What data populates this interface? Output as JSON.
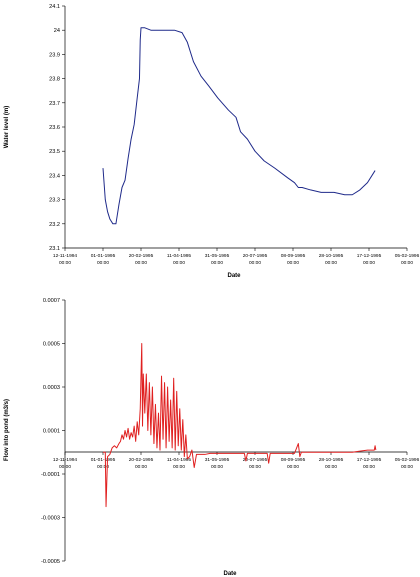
{
  "chart_data": [
    {
      "type": "line",
      "xlabel": "Date",
      "ylabel": "Water level (m)",
      "ylim": [
        23.1,
        24.1
      ],
      "y_ticks": [
        "24.1",
        "24",
        "23.9",
        "23.8",
        "23.7",
        "23.6",
        "23.5",
        "23.4",
        "23.3",
        "23.2",
        "23.1"
      ],
      "x_ticks": [
        [
          "12-11-1994",
          "00:00"
        ],
        [
          "01-01-1995",
          "00:00"
        ],
        [
          "20-02-1995",
          "00:00"
        ],
        [
          "11-04-1995",
          "00:00"
        ],
        [
          "31-05-1995",
          "00:00"
        ],
        [
          "20-07-1995",
          "00:00"
        ],
        [
          "08-09-1995",
          "00:00"
        ],
        [
          "28-10-1995",
          "00:00"
        ],
        [
          "17-12-1995",
          "00:00"
        ],
        [
          "05-02-1996",
          "00:00"
        ]
      ],
      "xlim": [
        "1994-11-12",
        "1996-02-05"
      ],
      "line_color": "#1f2a8a",
      "grid": false,
      "series": [
        {
          "x": [
            "1995-01-01",
            "1995-01-04",
            "1995-01-07",
            "1995-01-10",
            "1995-01-14",
            "1995-01-18",
            "1995-01-22",
            "1995-01-26",
            "1995-01-30",
            "1995-02-03",
            "1995-02-07",
            "1995-02-11",
            "1995-02-15",
            "1995-02-18",
            "1995-02-19",
            "1995-02-20",
            "1995-02-25",
            "1995-03-05",
            "1995-03-15",
            "1995-03-25",
            "1995-04-05",
            "1995-04-15",
            "1995-04-22",
            "1995-04-30",
            "1995-05-10",
            "1995-05-20",
            "1995-06-01",
            "1995-06-15",
            "1995-06-25",
            "1995-07-01",
            "1995-07-10",
            "1995-07-20",
            "1995-08-01",
            "1995-08-15",
            "1995-09-01",
            "1995-09-10",
            "1995-09-15",
            "1995-09-20",
            "1995-10-01",
            "1995-10-15",
            "1995-11-01",
            "1995-11-15",
            "1995-11-25",
            "1995-12-05",
            "1995-12-15",
            "1995-12-25"
          ],
          "y": [
            23.43,
            23.3,
            23.25,
            23.22,
            23.2,
            23.2,
            23.28,
            23.35,
            23.38,
            23.47,
            23.55,
            23.61,
            23.72,
            23.8,
            23.96,
            24.01,
            24.01,
            24.0,
            24.0,
            24.0,
            24.0,
            23.99,
            23.95,
            23.87,
            23.81,
            23.77,
            23.72,
            23.67,
            23.64,
            23.58,
            23.55,
            23.5,
            23.46,
            23.43,
            23.39,
            23.37,
            23.35,
            23.35,
            23.34,
            23.33,
            23.33,
            23.32,
            23.32,
            23.34,
            23.37,
            23.42
          ]
        }
      ]
    },
    {
      "type": "line",
      "xlabel": "Date",
      "ylabel": "Flow into pond (m3/s)",
      "ylim": [
        -0.0005,
        0.0007
      ],
      "y_ticks": [
        "0.0007",
        "0.0005",
        "0.0003",
        "0.0001",
        "-0.0001",
        "-0.0003",
        "-0.0005"
      ],
      "x_ticks": [
        [
          "12-11-1994",
          "00:00"
        ],
        [
          "01-01-1995",
          "00:00"
        ],
        [
          "20-02-1995",
          "00:00"
        ],
        [
          "11-04-1995",
          "00:00"
        ],
        [
          "31-05-1995",
          "00:00"
        ],
        [
          "20-07-1995",
          "00:00"
        ],
        [
          "08-09-1995",
          "00:00"
        ],
        [
          "28-10-1995",
          "00:00"
        ],
        [
          "17-12-1995",
          "00:00"
        ],
        [
          "05-02-1996",
          "00:00"
        ]
      ],
      "xlim": [
        "1994-11-12",
        "1996-02-05"
      ],
      "line_color": "#e02020",
      "grid": false,
      "series": [
        {
          "x": [
            "1995-01-01",
            "1995-01-04",
            "1995-01-05",
            "1995-01-07",
            "1995-01-10",
            "1995-01-13",
            "1995-01-16",
            "1995-01-19",
            "1995-01-22",
            "1995-01-24",
            "1995-01-26",
            "1995-01-28",
            "1995-01-30",
            "1995-02-01",
            "1995-02-03",
            "1995-02-05",
            "1995-02-07",
            "1995-02-09",
            "1995-02-11",
            "1995-02-13",
            "1995-02-15",
            "1995-02-17",
            "1995-02-19",
            "1995-02-21",
            "1995-02-22",
            "1995-02-23",
            "1995-02-25",
            "1995-02-27",
            "1995-03-01",
            "1995-03-03",
            "1995-03-05",
            "1995-03-07",
            "1995-03-09",
            "1995-03-11",
            "1995-03-13",
            "1995-03-15",
            "1995-03-17",
            "1995-03-19",
            "1995-03-21",
            "1995-03-23",
            "1995-03-25",
            "1995-03-27",
            "1995-03-29",
            "1995-03-31",
            "1995-04-02",
            "1995-04-04",
            "1995-04-06",
            "1995-04-08",
            "1995-04-10",
            "1995-04-12",
            "1995-04-14",
            "1995-04-16",
            "1995-04-18",
            "1995-04-20",
            "1995-04-22",
            "1995-04-25",
            "1995-04-28",
            "1995-05-01",
            "1995-05-04",
            "1995-05-10",
            "1995-05-15",
            "1995-05-22",
            "1995-06-01",
            "1995-06-15",
            "1995-06-30",
            "1995-07-06",
            "1995-07-08",
            "1995-07-10",
            "1995-07-20",
            "1995-07-30",
            "1995-08-05",
            "1995-08-07",
            "1995-08-09",
            "1995-08-20",
            "1995-09-01",
            "1995-09-10",
            "1995-09-15",
            "1995-09-17",
            "1995-09-19",
            "1995-10-01",
            "1995-10-15",
            "1995-11-01",
            "1995-11-15",
            "1995-11-25",
            "1995-12-05",
            "1995-12-15",
            "1995-12-24",
            "1995-12-25",
            "1995-12-26"
          ],
          "y": [
            0.0,
            0.0,
            -0.00025,
            -2e-05,
            -1e-05,
            2e-05,
            3e-05,
            2e-05,
            4e-05,
            5e-05,
            8e-05,
            6e-05,
            0.0001,
            7e-05,
            0.00011,
            6e-05,
            9e-05,
            7e-05,
            0.00012,
            5e-05,
            0.00014,
            8e-05,
            0.0002,
            0.0005,
            0.00012,
            0.00036,
            0.00018,
            0.00036,
            0.0001,
            0.00032,
            8e-05,
            0.0003,
            4e-05,
            0.00022,
            2e-05,
            0.00018,
            1e-05,
            0.00035,
            6e-05,
            0.00032,
            2e-05,
            0.0003,
            5e-05,
            0.00024,
            2e-05,
            0.00034,
            1e-05,
            0.00028,
            3e-05,
            0.0002,
            1e-05,
            0.00015,
            -2e-05,
            8e-05,
            -3e-05,
            -2e-05,
            1e-05,
            -7e-05,
            -1e-05,
            -1e-05,
            -1e-05,
            -5e-06,
            -5e-06,
            -5e-06,
            -5e-06,
            -5e-06,
            -4e-05,
            -5e-06,
            -5e-06,
            -5e-06,
            -5e-06,
            -5e-05,
            -5e-06,
            -5e-06,
            -5e-06,
            -5e-06,
            4e-05,
            -2e-05,
            0.0,
            0.0,
            0.0,
            0.0,
            0.0,
            0.0,
            5e-06,
            1e-05,
            1e-05,
            3e-05,
            1e-05
          ]
        }
      ]
    }
  ]
}
